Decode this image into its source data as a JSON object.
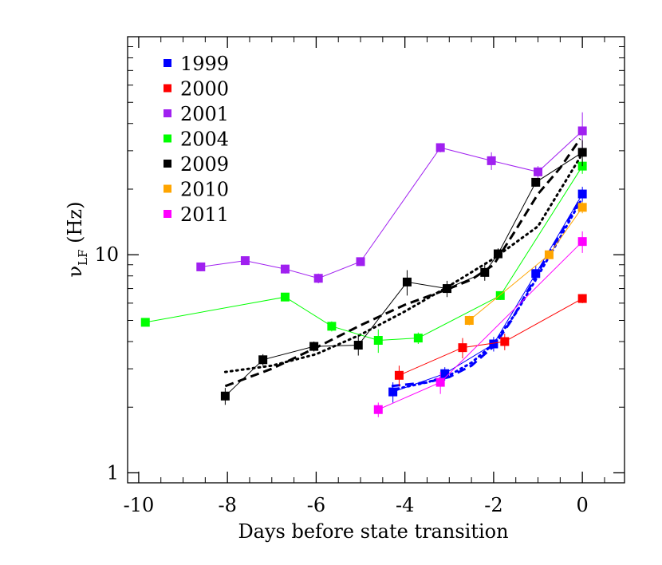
{
  "chart_data": {
    "type": "scatter",
    "title": "",
    "xlabel": "Days before state transition",
    "ylabel": {
      "base": "ν",
      "sub": "LF",
      "suffix": " (Hz)"
    },
    "xlim": [
      -10.25,
      0.95
    ],
    "ylim": [
      0.9,
      100
    ],
    "yscale": "log",
    "x_ticks": [
      -10,
      -8,
      -6,
      -4,
      -2,
      0
    ],
    "x_tick_labels": [
      "-10",
      "-8",
      "-6",
      "-4",
      "-2",
      "0"
    ],
    "y_ticks": [
      1,
      10
    ],
    "y_tick_labels": [
      "1",
      "10"
    ],
    "legend_position": "top-left",
    "grid": false,
    "series": [
      {
        "name": "1999",
        "color": "#0000ff",
        "points": [
          {
            "x": -4.27,
            "y": 2.35
          },
          {
            "x": -3.1,
            "y": 2.85
          },
          {
            "x": -2.0,
            "y": 3.9
          },
          {
            "x": -1.05,
            "y": 8.2
          },
          {
            "x": 0.0,
            "y": 19.0
          }
        ],
        "errors": [
          0.25,
          0.2,
          0.3,
          0.7,
          1.5
        ]
      },
      {
        "name": "2000",
        "color": "#ff0000",
        "points": [
          {
            "x": -4.13,
            "y": 2.8
          },
          {
            "x": -2.7,
            "y": 3.75
          },
          {
            "x": -1.75,
            "y": 4.0
          },
          {
            "x": 0.0,
            "y": 6.3
          }
        ],
        "errors": [
          0.3,
          0.4,
          0.35,
          0.3
        ]
      },
      {
        "name": "2001",
        "color": "#a020f0",
        "points": [
          {
            "x": -8.6,
            "y": 8.8
          },
          {
            "x": -7.6,
            "y": 9.4
          },
          {
            "x": -6.7,
            "y": 8.6
          },
          {
            "x": -5.95,
            "y": 7.8
          },
          {
            "x": -5.0,
            "y": 9.3
          },
          {
            "x": -3.2,
            "y": 31.0
          },
          {
            "x": -2.05,
            "y": 27.0
          },
          {
            "x": -1.0,
            "y": 24.0
          },
          {
            "x": 0.0,
            "y": 37.0
          }
        ],
        "errors": [
          0.4,
          0.4,
          0.4,
          0.4,
          0.4,
          1.5,
          2.5,
          1.5,
          8.0
        ]
      },
      {
        "name": "2004",
        "color": "#00ff00",
        "points": [
          {
            "x": -9.85,
            "y": 4.9
          },
          {
            "x": -6.7,
            "y": 6.4
          },
          {
            "x": -5.65,
            "y": 4.7
          },
          {
            "x": -4.6,
            "y": 4.05
          },
          {
            "x": -3.7,
            "y": 4.15
          },
          {
            "x": -1.85,
            "y": 6.5
          },
          {
            "x": 0.0,
            "y": 25.5
          }
        ],
        "errors": [
          0.2,
          0.2,
          0.25,
          0.5,
          0.25,
          0.3,
          2.0
        ]
      },
      {
        "name": "2009",
        "color": "#000000",
        "points": [
          {
            "x": -8.05,
            "y": 2.25
          },
          {
            "x": -7.2,
            "y": 3.3
          },
          {
            "x": -6.05,
            "y": 3.8
          },
          {
            "x": -5.05,
            "y": 3.85
          },
          {
            "x": -3.95,
            "y": 7.5
          },
          {
            "x": -3.05,
            "y": 7.0
          },
          {
            "x": -2.2,
            "y": 8.3
          },
          {
            "x": -1.9,
            "y": 10.1
          },
          {
            "x": -1.05,
            "y": 21.5
          },
          {
            "x": 0.0,
            "y": 29.5
          }
        ],
        "errors": [
          0.2,
          0.2,
          0.2,
          0.4,
          1.0,
          0.6,
          0.7,
          0.6,
          1.0,
          4.0
        ]
      },
      {
        "name": "2010",
        "color": "#ffa500",
        "points": [
          {
            "x": -2.55,
            "y": 5.0
          },
          {
            "x": -0.75,
            "y": 10.0
          },
          {
            "x": 0.0,
            "y": 16.5
          }
        ],
        "errors": [
          0.25,
          0.4,
          1.0
        ]
      },
      {
        "name": "2011",
        "color": "#ff00ff",
        "points": [
          {
            "x": -4.6,
            "y": 1.95
          },
          {
            "x": -3.2,
            "y": 2.6
          },
          {
            "x": 0.0,
            "y": 11.5
          }
        ],
        "errors": [
          0.15,
          0.3,
          1.3
        ]
      }
    ],
    "fits": [
      {
        "style": "dashed",
        "color": "#000000",
        "points": [
          {
            "x": -8.05,
            "y": 2.5
          },
          {
            "x": -7.0,
            "y": 3.0
          },
          {
            "x": -6.0,
            "y": 3.75
          },
          {
            "x": -5.0,
            "y": 4.75
          },
          {
            "x": -4.0,
            "y": 5.9
          },
          {
            "x": -3.0,
            "y": 7.0
          },
          {
            "x": -2.5,
            "y": 7.7
          },
          {
            "x": -2.0,
            "y": 9.0
          },
          {
            "x": -1.5,
            "y": 13.0
          },
          {
            "x": -1.0,
            "y": 19.0
          },
          {
            "x": -0.5,
            "y": 25.0
          },
          {
            "x": -0.05,
            "y": 34.0
          }
        ]
      },
      {
        "style": "dotted",
        "color": "#000000",
        "points": [
          {
            "x": -8.05,
            "y": 2.9
          },
          {
            "x": -7.0,
            "y": 3.1
          },
          {
            "x": -6.0,
            "y": 3.5
          },
          {
            "x": -5.0,
            "y": 4.3
          },
          {
            "x": -4.0,
            "y": 5.5
          },
          {
            "x": -3.0,
            "y": 7.2
          },
          {
            "x": -2.0,
            "y": 9.6
          },
          {
            "x": -1.0,
            "y": 13.5
          },
          {
            "x": -0.05,
            "y": 28.0
          }
        ]
      },
      {
        "style": "dashed",
        "color": "#0000ff",
        "points": [
          {
            "x": -4.3,
            "y": 2.5
          },
          {
            "x": -3.5,
            "y": 2.6
          },
          {
            "x": -3.0,
            "y": 2.75
          },
          {
            "x": -2.5,
            "y": 3.1
          },
          {
            "x": -2.0,
            "y": 3.8
          },
          {
            "x": -1.6,
            "y": 5.0
          },
          {
            "x": -1.2,
            "y": 7.0
          },
          {
            "x": -0.8,
            "y": 9.8
          },
          {
            "x": -0.4,
            "y": 13.5
          },
          {
            "x": -0.05,
            "y": 18.0
          }
        ]
      },
      {
        "style": "dotted",
        "color": "#0000ff",
        "points": [
          {
            "x": -4.3,
            "y": 2.4
          },
          {
            "x": -3.5,
            "y": 2.6
          },
          {
            "x": -3.0,
            "y": 2.8
          },
          {
            "x": -2.5,
            "y": 3.2
          },
          {
            "x": -2.0,
            "y": 3.9
          },
          {
            "x": -1.5,
            "y": 5.4
          },
          {
            "x": -1.0,
            "y": 8.0
          },
          {
            "x": -0.5,
            "y": 12.0
          },
          {
            "x": -0.05,
            "y": 17.5
          }
        ]
      }
    ]
  }
}
